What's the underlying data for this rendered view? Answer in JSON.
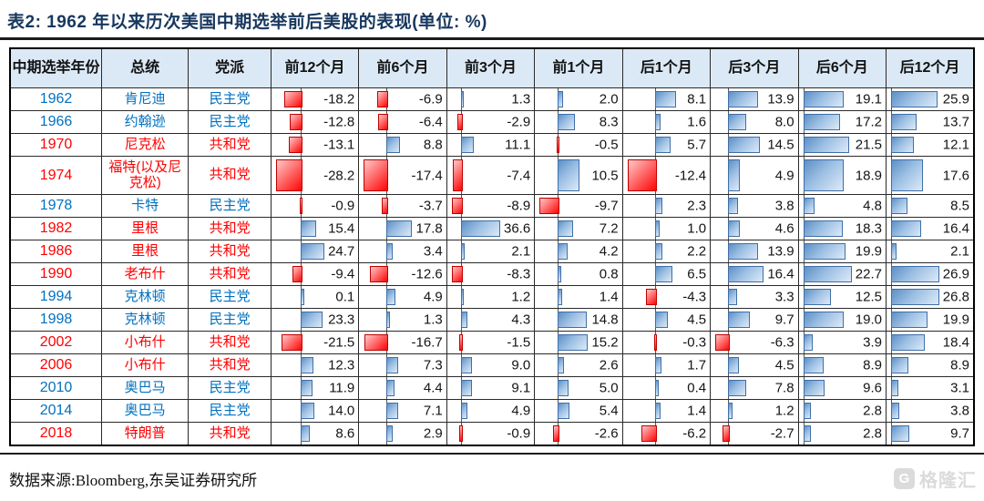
{
  "title": "表2:  1962 年以来历次美国中期选举前后美股的表现(单位: %)",
  "footer": {
    "source": "数据来源:Bloomberg,东吴证券研究所"
  },
  "watermark": {
    "icon": "G",
    "text": "格隆汇"
  },
  "colors": {
    "title_navy": "#17375e",
    "header_bg": "#dbe9f6",
    "democrat_text": "#0070c0",
    "republican_text": "#ff0000",
    "positive_bar": "#5d8fc5",
    "negative_bar": "#ff0404"
  },
  "chart_data": {
    "type": "table",
    "title": "表2: 1962年以来历次美国中期选举前后美股的表现(单位:%)",
    "columns": [
      "中期选举年份",
      "总统",
      "党派",
      "前12个月",
      "前6个月",
      "前3个月",
      "前1个月",
      "后1个月",
      "后3个月",
      "后6个月",
      "后12个月"
    ],
    "rows": [
      {
        "year": "1962",
        "president": "肯尼迪",
        "party": "民主党",
        "affiliation": "dem",
        "values": [
          -18.2,
          -6.9,
          1.3,
          2.0,
          8.1,
          13.9,
          19.1,
          25.9
        ]
      },
      {
        "year": "1966",
        "president": "约翰逊",
        "party": "民主党",
        "affiliation": "dem",
        "values": [
          -12.8,
          -6.4,
          -2.9,
          8.3,
          1.6,
          8.0,
          17.2,
          13.7
        ]
      },
      {
        "year": "1970",
        "president": "尼克松",
        "party": "共和党",
        "affiliation": "rep",
        "values": [
          -13.1,
          8.8,
          11.1,
          -0.5,
          5.7,
          14.5,
          21.5,
          12.1
        ]
      },
      {
        "year": "1974",
        "president": "福特(以及尼克松)",
        "party": "共和党",
        "affiliation": "rep",
        "values": [
          -28.2,
          -17.4,
          -7.4,
          10.5,
          -12.4,
          4.9,
          18.9,
          17.6
        ]
      },
      {
        "year": "1978",
        "president": "卡特",
        "party": "民主党",
        "affiliation": "dem",
        "values": [
          -0.9,
          -3.7,
          -8.9,
          -9.7,
          2.3,
          3.8,
          4.8,
          8.5
        ]
      },
      {
        "year": "1982",
        "president": "里根",
        "party": "共和党",
        "affiliation": "rep",
        "values": [
          15.4,
          17.8,
          36.6,
          7.2,
          1.0,
          4.6,
          18.3,
          16.4
        ]
      },
      {
        "year": "1986",
        "president": "里根",
        "party": "共和党",
        "affiliation": "rep",
        "values": [
          24.7,
          3.4,
          2.1,
          4.2,
          2.2,
          13.9,
          19.9,
          2.1
        ]
      },
      {
        "year": "1990",
        "president": "老布什",
        "party": "共和党",
        "affiliation": "rep",
        "values": [
          -9.4,
          -12.6,
          -8.3,
          0.8,
          6.5,
          16.4,
          22.7,
          26.9
        ]
      },
      {
        "year": "1994",
        "president": "克林顿",
        "party": "民主党",
        "affiliation": "dem",
        "values": [
          0.1,
          4.9,
          1.2,
          1.4,
          -4.3,
          3.3,
          12.5,
          26.8
        ]
      },
      {
        "year": "1998",
        "president": "克林顿",
        "party": "民主党",
        "affiliation": "dem",
        "values": [
          23.3,
          1.3,
          4.3,
          14.8,
          4.5,
          9.7,
          19.0,
          19.9
        ]
      },
      {
        "year": "2002",
        "president": "小布什",
        "party": "共和党",
        "affiliation": "rep",
        "values": [
          -21.5,
          -16.7,
          -1.5,
          15.2,
          -0.3,
          -6.3,
          3.9,
          18.4
        ]
      },
      {
        "year": "2006",
        "president": "小布什",
        "party": "共和党",
        "affiliation": "rep",
        "values": [
          12.3,
          7.3,
          9.0,
          2.6,
          1.7,
          4.5,
          8.9,
          8.9
        ]
      },
      {
        "year": "2010",
        "president": "奥巴马",
        "party": "民主党",
        "affiliation": "dem",
        "values": [
          11.9,
          4.4,
          9.1,
          5.0,
          0.4,
          7.8,
          9.6,
          3.1
        ]
      },
      {
        "year": "2014",
        "president": "奥巴马",
        "party": "民主党",
        "affiliation": "dem",
        "values": [
          14.0,
          7.1,
          4.9,
          5.4,
          1.4,
          1.2,
          2.8,
          3.8
        ]
      },
      {
        "year": "2018",
        "president": "特朗普",
        "party": "共和党",
        "affiliation": "rep",
        "values": [
          8.6,
          2.9,
          -0.9,
          -2.6,
          -6.2,
          -2.7,
          2.8,
          9.7
        ]
      }
    ]
  }
}
